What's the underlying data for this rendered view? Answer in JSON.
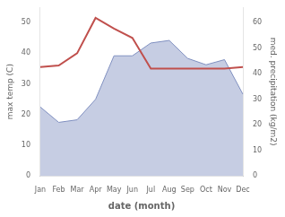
{
  "chart_data": {
    "type": "line",
    "xlabel": "date (month)",
    "ylabel": "max temp (C)",
    "y2label": "med. precipitation (kg/m2)",
    "categories": [
      "Jan",
      "Feb",
      "Mar",
      "Apr",
      "May",
      "Jun",
      "Jul",
      "Aug",
      "Sep",
      "Oct",
      "Nov",
      "Dec"
    ],
    "series": [
      {
        "type": "line",
        "color": "#c0504d",
        "values": [
          35.5,
          36.0,
          40.0,
          51.5,
          48.0,
          45.0,
          35.0,
          35.0,
          35.0,
          35.0,
          35.0,
          35.5
        ]
      },
      {
        "type": "area",
        "color": "#8090c0",
        "axis": "y2",
        "values": [
          27.0,
          21.0,
          22.0,
          30.0,
          47.0,
          47.0,
          52.0,
          53.0,
          46.0,
          43.5,
          45.5,
          32.0
        ]
      }
    ],
    "ylim": [
      0,
      55
    ],
    "yticks": [
      0,
      10,
      20,
      30,
      40,
      50
    ],
    "y2lim": [
      0,
      66
    ],
    "y2ticks": [
      0,
      10,
      20,
      30,
      40,
      50,
      60
    ],
    "grid": false
  }
}
